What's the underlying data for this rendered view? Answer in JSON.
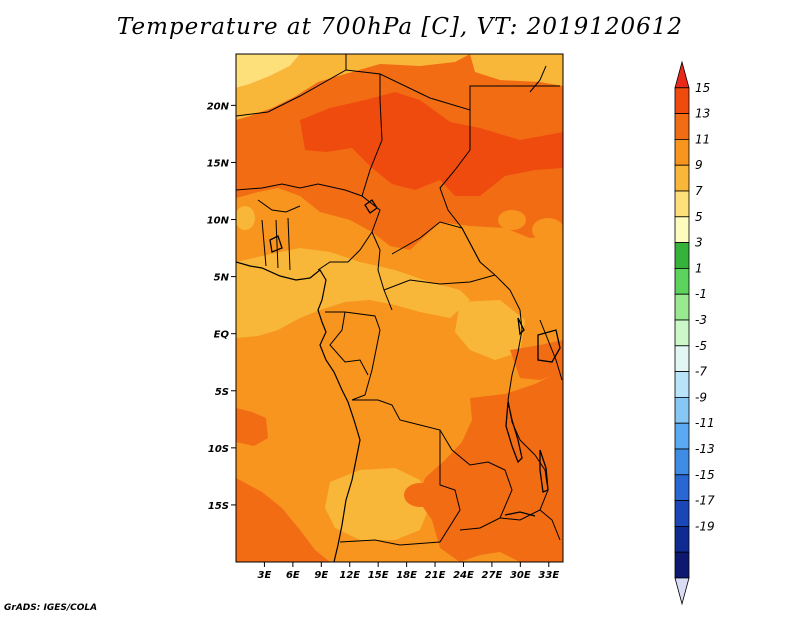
{
  "title": "Temperature at 700hPa [C], VT: 2019120612",
  "credit": "GrADS: IGES/COLA",
  "map": {
    "lon_ticks": [
      {
        "value": 3,
        "label": "3E"
      },
      {
        "value": 6,
        "label": "6E"
      },
      {
        "value": 9,
        "label": "9E"
      },
      {
        "value": 12,
        "label": "12E"
      },
      {
        "value": 15,
        "label": "15E"
      },
      {
        "value": 18,
        "label": "18E"
      },
      {
        "value": 21,
        "label": "21E"
      },
      {
        "value": 24,
        "label": "24E"
      },
      {
        "value": 27,
        "label": "27E"
      },
      {
        "value": 30,
        "label": "30E"
      },
      {
        "value": 33,
        "label": "33E"
      }
    ],
    "lat_ticks": [
      {
        "value": 20,
        "label": "20N"
      },
      {
        "value": 15,
        "label": "15N"
      },
      {
        "value": 10,
        "label": "10N"
      },
      {
        "value": 5,
        "label": "5N"
      },
      {
        "value": 0,
        "label": "EQ"
      },
      {
        "value": -5,
        "label": "5S"
      },
      {
        "value": -10,
        "label": "10S"
      },
      {
        "value": -15,
        "label": "15S"
      }
    ],
    "lon_range": [
      0,
      34.5
    ],
    "lat_range": [
      -20,
      24.5
    ]
  },
  "colorbar": {
    "levels": [
      "15",
      "13",
      "11",
      "9",
      "7",
      "5",
      "3",
      "1",
      "-1",
      "-3",
      "-5",
      "-7",
      "-9",
      "-11",
      "-13",
      "-15",
      "-17",
      "-19"
    ],
    "colors": [
      "#e8281b",
      "#f04b0e",
      "#f26c14",
      "#f7951e",
      "#f9b73a",
      "#fde07a",
      "#fefbbe",
      "#36b13a",
      "#5cd35c",
      "#98e98f",
      "#ccf7c8",
      "#e2f7f3",
      "#b8e3f9",
      "#87c7f6",
      "#5ba9f2",
      "#3f8ce4",
      "#2968d3",
      "#1b47b6",
      "#0f2b92",
      "#0d1870",
      "#d9dcf4"
    ]
  },
  "regions": [
    {
      "name": "base",
      "level": "9-11",
      "color": "#f7951e"
    },
    {
      "name": "sahara-north",
      "level": "11-13",
      "color": "#f26c14"
    },
    {
      "name": "chad-sudan-core",
      "level": "13-15",
      "color": "#f04b0e"
    },
    {
      "name": "sahara-nw-corner",
      "level": "5-7",
      "color": "#fde07a"
    },
    {
      "name": "sahara-n-strip",
      "level": "7-9",
      "color": "#f9b73a"
    },
    {
      "name": "west-africa-band",
      "level": "7-9",
      "color": "#f9b73a"
    },
    {
      "name": "southeast-warm",
      "level": "11-13",
      "color": "#f26c14"
    },
    {
      "name": "southwest-warm",
      "level": "11-13",
      "color": "#f26c14"
    }
  ]
}
